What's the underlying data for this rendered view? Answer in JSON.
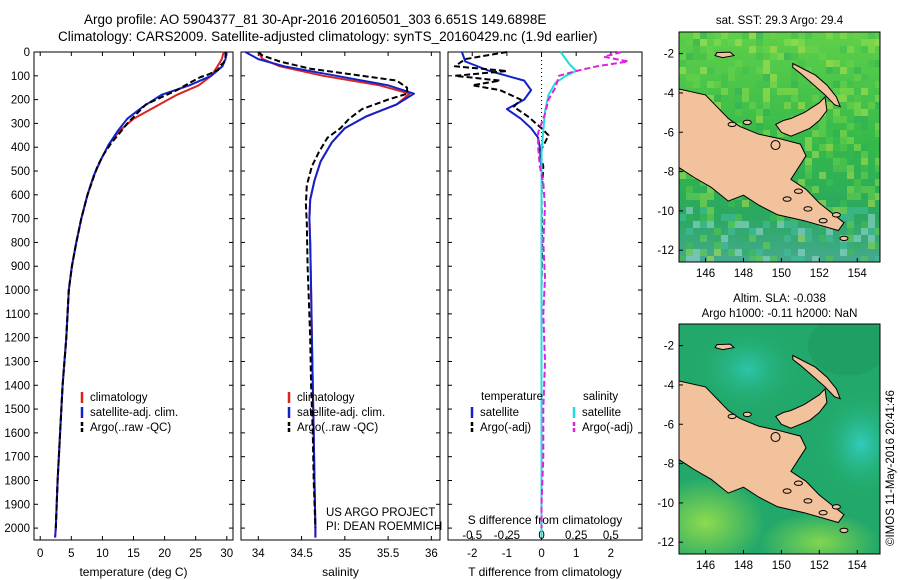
{
  "header": {
    "line1": "Argo profile: AO 5904377_81 30-Apr-2016 20160501_303 6.651S 149.6898E",
    "line2": "Climatology: CARS2009. Satellite-adjusted climatology: synTS_20160429.nc (1.9d earlier)"
  },
  "watermark": "©IMOS 11-May-2016 20:41:46",
  "depth_ticks": [
    "0",
    "100",
    "200",
    "300",
    "400",
    "500",
    "600",
    "700",
    "800",
    "900",
    "1000",
    "1100",
    "1200",
    "1300",
    "1400",
    "1500",
    "1600",
    "1700",
    "1800",
    "1900",
    "2000"
  ],
  "colors": {
    "climatology": "#dd2222",
    "satellite": "#1122cc",
    "argo": "#000000",
    "salinity_sat": "#22dddd",
    "salinity_argo": "#dd22dd",
    "land": "#f2c29c"
  },
  "chart_data": [
    {
      "type": "line",
      "name": "temperature-profile",
      "xlabel": "temperature (deg C)",
      "xlim": [
        -1,
        31
      ],
      "ylim": [
        2050,
        0
      ],
      "xticks": [
        0,
        5,
        10,
        15,
        20,
        25,
        30
      ],
      "xtick_labels": [
        "0",
        "5",
        "10",
        "15",
        "20",
        "25",
        "30"
      ],
      "legend": [
        "climatology",
        "satellite-adj. clim.",
        "Argo(..raw -QC)"
      ],
      "series": [
        {
          "name": "climatology",
          "color": "#dd2222",
          "dash": "",
          "points": [
            [
              29.5,
              0
            ],
            [
              29.2,
              30
            ],
            [
              28.5,
              60
            ],
            [
              27.5,
              100
            ],
            [
              25.5,
              140
            ],
            [
              22,
              180
            ],
            [
              18.5,
              230
            ],
            [
              15,
              280
            ],
            [
              12.8,
              330
            ],
            [
              11,
              390
            ],
            [
              9.8,
              450
            ],
            [
              8.6,
              520
            ],
            [
              7.6,
              600
            ],
            [
              6.6,
              700
            ],
            [
              5.8,
              800
            ],
            [
              5.1,
              900
            ],
            [
              4.6,
              1000
            ],
            [
              4.2,
              1200
            ],
            [
              3.6,
              1400
            ],
            [
              3.2,
              1600
            ],
            [
              2.8,
              1800
            ],
            [
              2.5,
              2000
            ],
            [
              2.4,
              2040
            ]
          ]
        },
        {
          "name": "satellite-adj. clim.",
          "color": "#1122cc",
          "dash": "",
          "points": [
            [
              30,
              0
            ],
            [
              29.8,
              30
            ],
            [
              29.3,
              60
            ],
            [
              27.5,
              100
            ],
            [
              24,
              140
            ],
            [
              19.5,
              180
            ],
            [
              16.5,
              230
            ],
            [
              14,
              280
            ],
            [
              12.5,
              330
            ],
            [
              11,
              390
            ],
            [
              9.8,
              450
            ],
            [
              8.6,
              520
            ],
            [
              7.6,
              600
            ],
            [
              6.6,
              700
            ],
            [
              5.8,
              800
            ],
            [
              5.1,
              900
            ],
            [
              4.6,
              1000
            ],
            [
              4.2,
              1200
            ],
            [
              3.6,
              1400
            ],
            [
              3.2,
              1600
            ],
            [
              2.8,
              1800
            ],
            [
              2.5,
              2000
            ],
            [
              2.4,
              2040
            ]
          ]
        },
        {
          "name": "Argo(..raw -QC)",
          "color": "#000000",
          "dash": "6,3",
          "points": [
            [
              29.8,
              0
            ],
            [
              29.8,
              20
            ],
            [
              29.5,
              45
            ],
            [
              28.8,
              60
            ],
            [
              28.6,
              75
            ],
            [
              27,
              95
            ],
            [
              25.8,
              105
            ],
            [
              24,
              130
            ],
            [
              22,
              160
            ],
            [
              19.5,
              190
            ],
            [
              17,
              220
            ],
            [
              15.5,
              260
            ],
            [
              14,
              300
            ],
            [
              12.8,
              340
            ],
            [
              11.5,
              380
            ],
            [
              10.2,
              430
            ],
            [
              9.2,
              480
            ],
            [
              8.4,
              540
            ],
            [
              7.6,
              600
            ],
            [
              6.6,
              700
            ],
            [
              5.8,
              800
            ],
            [
              5.1,
              900
            ],
            [
              4.6,
              1000
            ],
            [
              4.2,
              1200
            ],
            [
              3.6,
              1400
            ],
            [
              3.2,
              1600
            ],
            [
              2.8,
              1800
            ],
            [
              2.5,
              2000
            ]
          ]
        }
      ]
    },
    {
      "type": "line",
      "name": "salinity-profile",
      "xlabel": "salinity",
      "xlim": [
        33.8,
        36.1
      ],
      "ylim": [
        2050,
        0
      ],
      "xticks": [
        34,
        34.5,
        35,
        35.5,
        36
      ],
      "xtick_labels": [
        "34",
        "34.5",
        "35",
        "35.5",
        "36"
      ],
      "legend": [
        "climatology",
        "satellite-adj. clim.",
        "Argo(..raw -QC)"
      ],
      "annotation": [
        "US ARGO PROJECT",
        "PI: DEAN ROEMMICH"
      ],
      "series": [
        {
          "name": "climatology",
          "color": "#dd2222",
          "dash": "",
          "points": [
            [
              34.0,
              0
            ],
            [
              34.05,
              30
            ],
            [
              34.25,
              60
            ],
            [
              34.75,
              100
            ],
            [
              35.4,
              140
            ],
            [
              35.75,
              175
            ],
            [
              35.6,
              220
            ],
            [
              35.25,
              270
            ],
            [
              35.0,
              320
            ],
            [
              34.85,
              380
            ],
            [
              34.72,
              460
            ],
            [
              34.65,
              540
            ],
            [
              34.6,
              620
            ],
            [
              34.59,
              700
            ],
            [
              34.6,
              800
            ],
            [
              34.61,
              1000
            ],
            [
              34.62,
              1200
            ],
            [
              34.63,
              1400
            ],
            [
              34.64,
              1600
            ],
            [
              34.65,
              1800
            ],
            [
              34.66,
              2000
            ],
            [
              34.66,
              2040
            ]
          ]
        },
        {
          "name": "satellite-adj. clim.",
          "color": "#1122cc",
          "dash": "",
          "points": [
            [
              33.85,
              0
            ],
            [
              34.0,
              30
            ],
            [
              34.3,
              60
            ],
            [
              34.9,
              100
            ],
            [
              35.5,
              140
            ],
            [
              35.8,
              175
            ],
            [
              35.6,
              220
            ],
            [
              35.25,
              270
            ],
            [
              35.0,
              320
            ],
            [
              34.85,
              380
            ],
            [
              34.72,
              460
            ],
            [
              34.65,
              540
            ],
            [
              34.6,
              620
            ],
            [
              34.59,
              700
            ],
            [
              34.6,
              800
            ],
            [
              34.61,
              1000
            ],
            [
              34.62,
              1200
            ],
            [
              34.63,
              1400
            ],
            [
              34.64,
              1600
            ],
            [
              34.65,
              1800
            ],
            [
              34.66,
              2000
            ],
            [
              34.66,
              2040
            ]
          ]
        },
        {
          "name": "Argo(..raw -QC)",
          "color": "#000000",
          "dash": "6,3",
          "points": [
            [
              34.0,
              0
            ],
            [
              34.05,
              15
            ],
            [
              34.25,
              40
            ],
            [
              34.6,
              70
            ],
            [
              35.2,
              100
            ],
            [
              35.6,
              120
            ],
            [
              35.72,
              150
            ],
            [
              35.72,
              175
            ],
            [
              35.5,
              200
            ],
            [
              35.2,
              240
            ],
            [
              35.05,
              280
            ],
            [
              34.95,
              320
            ],
            [
              34.8,
              360
            ],
            [
              34.7,
              420
            ],
            [
              34.62,
              480
            ],
            [
              34.56,
              560
            ],
            [
              34.55,
              640
            ],
            [
              34.56,
              720
            ],
            [
              34.57,
              900
            ],
            [
              34.58,
              1000
            ],
            [
              34.6,
              1200
            ],
            [
              34.61,
              1400
            ],
            [
              34.63,
              1600
            ],
            [
              34.64,
              1800
            ],
            [
              34.66,
              2000
            ]
          ]
        }
      ]
    },
    {
      "type": "line",
      "name": "difference-profile",
      "xlabel": "T difference from climatology",
      "xlabel_top": "S difference from climatology",
      "xlim": [
        -2.7,
        2.9
      ],
      "ylim": [
        2050,
        0
      ],
      "xticks": [
        -2,
        -1,
        0,
        1,
        2
      ],
      "xtick_labels": [
        "-2",
        "-1",
        "0",
        "1",
        "2"
      ],
      "s_ticks": [
        -0.5,
        -0.25,
        0,
        0.25,
        0.5
      ],
      "s_tick_labels": [
        "-0.5",
        "-0.25",
        "0",
        "0.25",
        "0.5"
      ],
      "s_scale": 4,
      "legend_temperature": [
        "temperature",
        "satellite",
        "Argo(-adj)"
      ],
      "legend_salinity": [
        "salinity",
        "satellite",
        "Argo(-adj)"
      ],
      "series": [
        {
          "name": "temperature satellite",
          "color": "#1122cc",
          "dash": "",
          "points": [
            [
              -2.3,
              0
            ],
            [
              -2.2,
              40
            ],
            [
              -1.5,
              80
            ],
            [
              -0.5,
              120
            ],
            [
              -0.3,
              160
            ],
            [
              -0.5,
              200
            ],
            [
              -1.0,
              240
            ],
            [
              -0.6,
              280
            ],
            [
              -0.3,
              320
            ],
            [
              -0.1,
              360
            ],
            [
              -0.05,
              400
            ],
            [
              0,
              500
            ],
            [
              0,
              2040
            ]
          ]
        },
        {
          "name": "temperature Argo(-adj)",
          "color": "#000000",
          "dash": "6,3",
          "points": [
            [
              -1.0,
              0
            ],
            [
              -2.2,
              30
            ],
            [
              -2.5,
              60
            ],
            [
              -1.0,
              80
            ],
            [
              -2.5,
              100
            ],
            [
              -1.2,
              120
            ],
            [
              -2.0,
              140
            ],
            [
              -1.2,
              160
            ],
            [
              -0.6,
              200
            ],
            [
              -0.8,
              230
            ],
            [
              -0.4,
              270
            ],
            [
              0,
              320
            ],
            [
              0.2,
              350
            ],
            [
              0.1,
              380
            ],
            [
              -0.05,
              420
            ],
            [
              0.05,
              480
            ],
            [
              0,
              600
            ],
            [
              0.02,
              800
            ],
            [
              0,
              1000
            ],
            [
              0,
              2040
            ]
          ]
        },
        {
          "name": "salinity satellite",
          "color": "#22dddd",
          "dash": "",
          "points": [
            [
              0.55,
              0
            ],
            [
              0.8,
              50
            ],
            [
              1.0,
              80
            ],
            [
              0.7,
              100
            ],
            [
              0.4,
              130
            ],
            [
              0.2,
              180
            ],
            [
              0.1,
              250
            ],
            [
              0.05,
              330
            ],
            [
              0,
              420
            ],
            [
              0,
              2040
            ]
          ]
        },
        {
          "name": "salinity Argo(-adj)",
          "color": "#dd22dd",
          "dash": "6,3",
          "points": [
            [
              2.3,
              0
            ],
            [
              1.8,
              20
            ],
            [
              2.5,
              40
            ],
            [
              1.6,
              60
            ],
            [
              1.0,
              80
            ],
            [
              0.5,
              100
            ],
            [
              0.4,
              150
            ],
            [
              0.2,
              200
            ],
            [
              0.1,
              260
            ],
            [
              -0.1,
              340
            ],
            [
              -0.1,
              400
            ],
            [
              -0.05,
              480
            ],
            [
              0.05,
              550
            ],
            [
              0.1,
              650
            ],
            [
              0.05,
              800
            ],
            [
              0.1,
              950
            ],
            [
              0.05,
              1100
            ],
            [
              0.1,
              1300
            ],
            [
              0.05,
              1500
            ],
            [
              0.05,
              1700
            ],
            [
              0,
              1900
            ],
            [
              0,
              2000
            ]
          ]
        }
      ]
    },
    {
      "type": "heatmap",
      "name": "sst-map",
      "title": "sat. SST: 29.3  Argo: 29.4",
      "xlim": [
        144.6,
        155.2
      ],
      "ylim": [
        -12.6,
        -0.9
      ],
      "xticks": [
        146,
        148,
        150,
        152,
        154
      ],
      "xtick_labels": [
        "146",
        "148",
        "150",
        "152",
        "154"
      ],
      "yticks": [
        -2,
        -4,
        -6,
        -8,
        -10,
        -12
      ],
      "ytick_labels": [
        "-2",
        "-4",
        "-6",
        "-8",
        "-10",
        "-12"
      ],
      "marker": [
        149.6898,
        -6.651
      ]
    },
    {
      "type": "heatmap",
      "name": "sla-map",
      "title": "Altim. SLA: -0.038",
      "subtitle": "Argo h1000: -0.11  h2000: NaN",
      "xlim": [
        144.6,
        155.2
      ],
      "ylim": [
        -12.6,
        -0.9
      ],
      "xticks": [
        146,
        148,
        150,
        152,
        154
      ],
      "xtick_labels": [
        "146",
        "148",
        "150",
        "152",
        "154"
      ],
      "yticks": [
        -2,
        -4,
        -6,
        -8,
        -10,
        -12
      ],
      "ytick_labels": [
        "-2",
        "-4",
        "-6",
        "-8",
        "-10",
        "-12"
      ],
      "marker": [
        149.6898,
        -6.651
      ]
    }
  ]
}
